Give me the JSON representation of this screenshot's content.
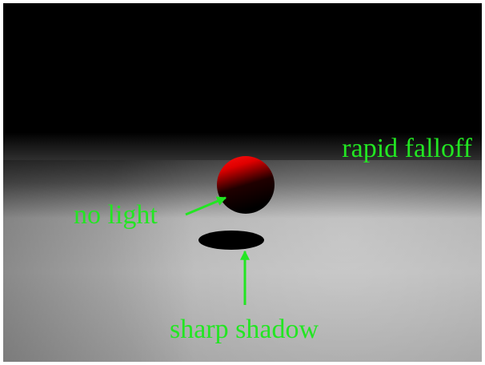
{
  "annotations": [
    {
      "label": "rapid falloff"
    },
    {
      "label": "no light"
    },
    {
      "label": "sharp shadow"
    }
  ]
}
